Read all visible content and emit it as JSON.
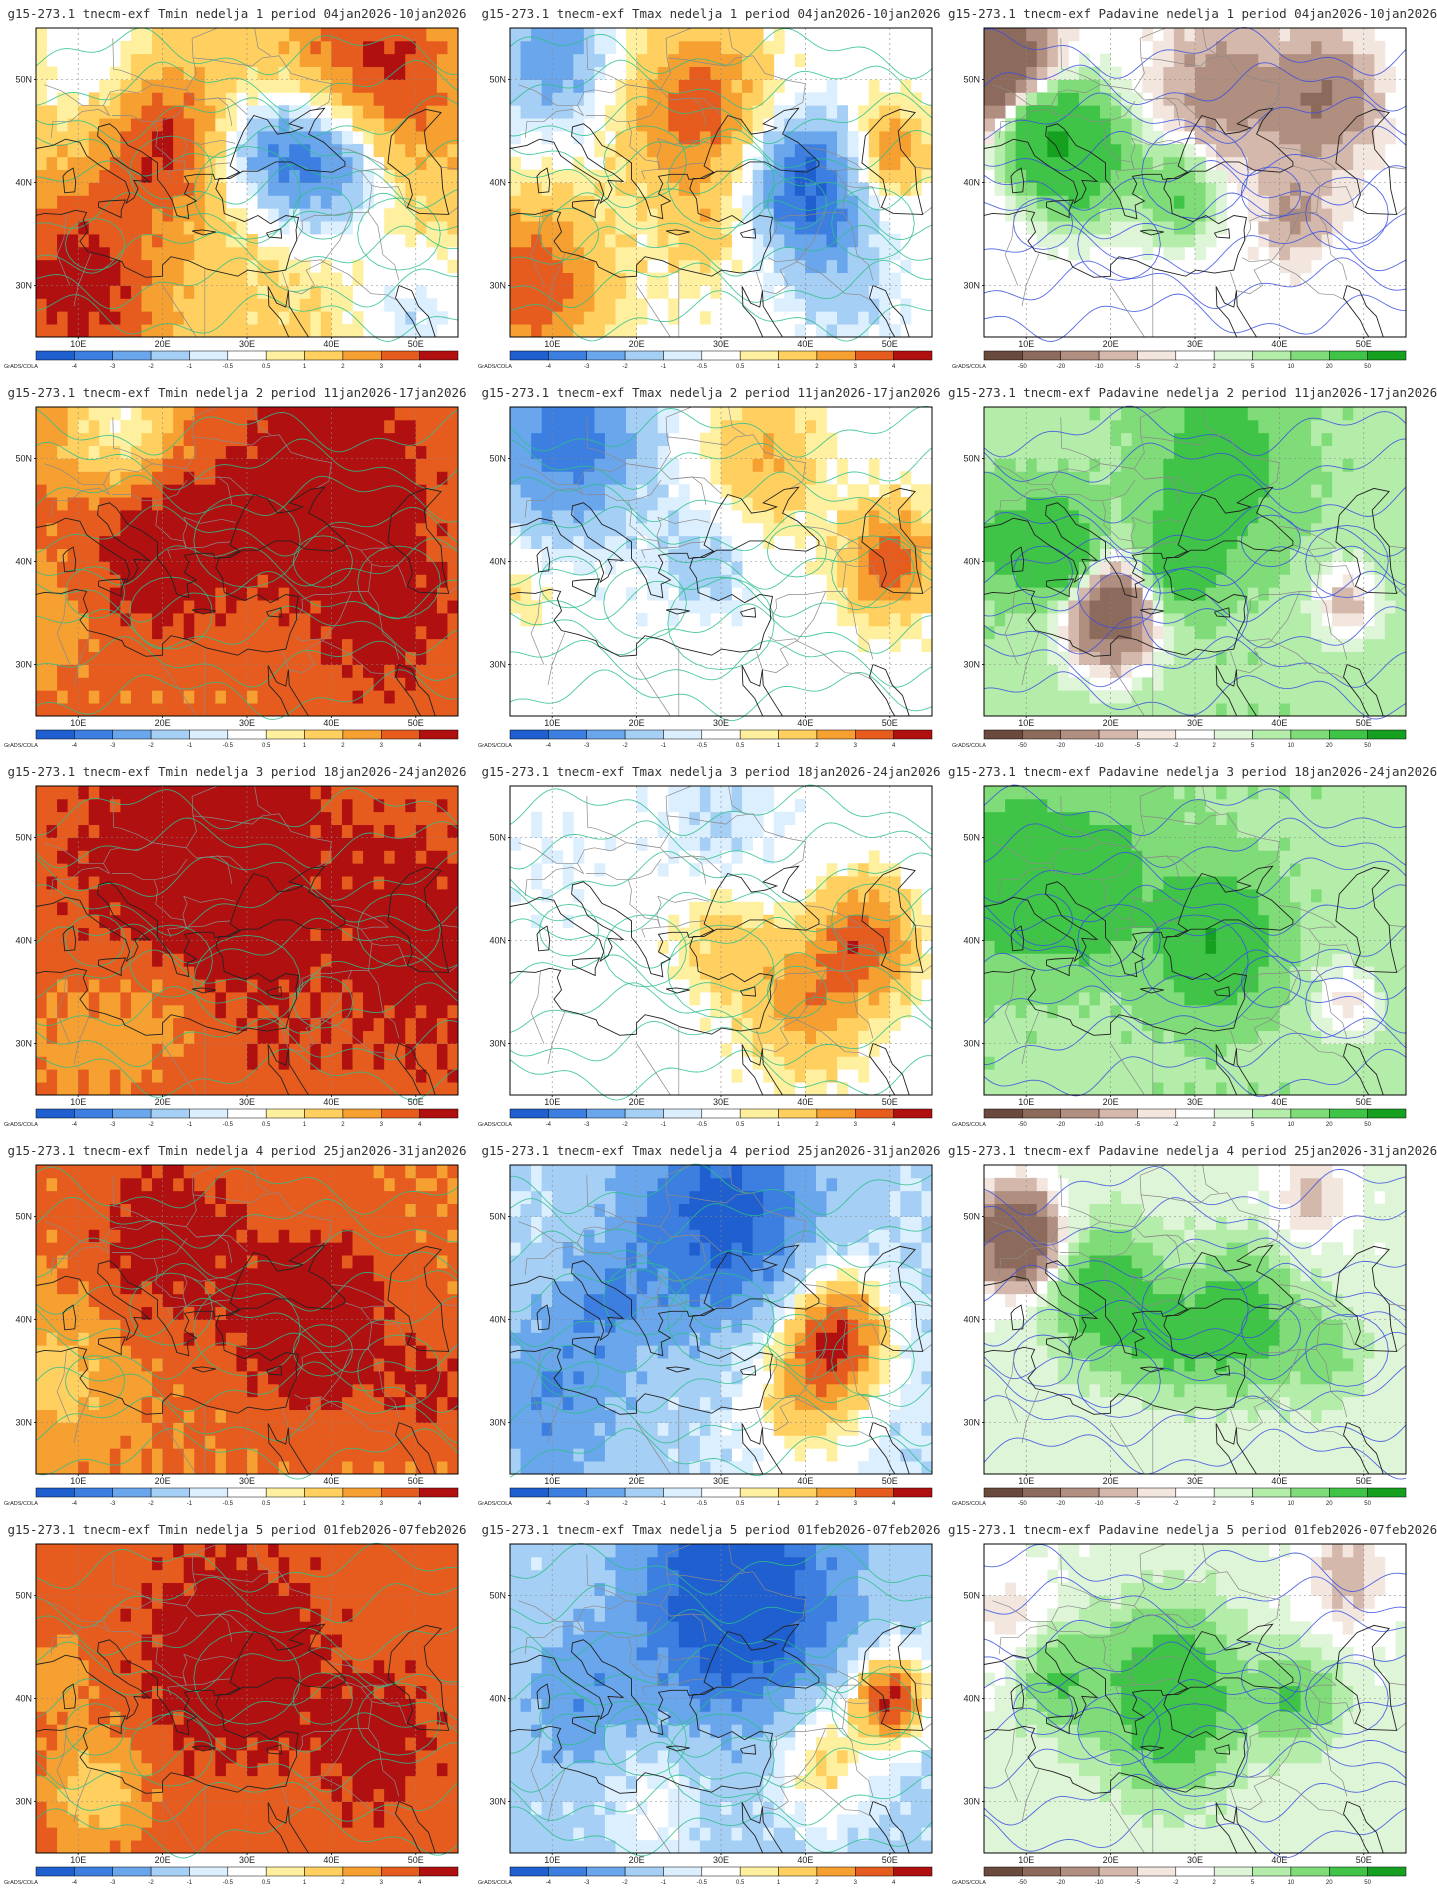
{
  "grads_label": "GrADS/COLA",
  "lat_labels": [
    "50N",
    "40N",
    "30N"
  ],
  "lon_labels": [
    "10E",
    "20E",
    "30E",
    "40E",
    "50E"
  ],
  "temp_colorbar": {
    "labels": [
      "-4",
      "-3",
      "-2",
      "-1",
      "-0.5",
      "0.5",
      "1",
      "2",
      "3",
      "4"
    ],
    "colors": [
      "#1f5fcf",
      "#3c7fe0",
      "#6aa6ec",
      "#a6cff5",
      "#dcefff",
      "#ffffff",
      "#fff0a0",
      "#ffd060",
      "#f5a030",
      "#e65c1e",
      "#b01010"
    ]
  },
  "precip_colorbar": {
    "labels": [
      "-50",
      "-20",
      "-10",
      "-5",
      "-2",
      "2",
      "5",
      "10",
      "20",
      "50"
    ],
    "colors": [
      "#6b4a3e",
      "#8c6a5c",
      "#b08e80",
      "#d4b8ac",
      "#f2e6df",
      "#ffffff",
      "#dff5d8",
      "#b4ecaa",
      "#7fdc78",
      "#3fc448",
      "#16a020"
    ]
  },
  "panels": [
    {
      "title": "g15-273.1 tnecm-exf Tmin nedelja 1 period 04jan2026-10jan2026",
      "kind": "tmin"
    },
    {
      "title": "g15-273.1 tnecm-exf Tmax nedelja 1 period 04jan2026-10jan2026",
      "kind": "tmax"
    },
    {
      "title": "g15-273.1 tnecm-exf Padavine nedelja 1 period 04jan2026-10jan2026",
      "kind": "precip"
    },
    {
      "title": "g15-273.1 tnecm-exf Tmin nedelja 2 period 11jan2026-17jan2026",
      "kind": "tmin"
    },
    {
      "title": "g15-273.1 tnecm-exf Tmax nedelja 2 period 11jan2026-17jan2026",
      "kind": "tmax"
    },
    {
      "title": "g15-273.1 tnecm-exf Padavine nedelja 2 period 11jan2026-17jan2026",
      "kind": "precip"
    },
    {
      "title": "g15-273.1 tnecm-exf Tmin nedelja 3 period 18jan2026-24jan2026",
      "kind": "tmin"
    },
    {
      "title": "g15-273.1 tnecm-exf Tmax nedelja 3 period 18jan2026-24jan2026",
      "kind": "tmax"
    },
    {
      "title": "g15-273.1 tnecm-exf Padavine nedelja 3 period 18jan2026-24jan2026",
      "kind": "precip"
    },
    {
      "title": "g15-273.1 tnecm-exf Tmin nedelja 4 period 25jan2026-31jan2026",
      "kind": "tmin"
    },
    {
      "title": "g15-273.1 tnecm-exf Tmax nedelja 4 period 25jan2026-31jan2026",
      "kind": "tmax"
    },
    {
      "title": "g15-273.1 tnecm-exf Padavine nedelja 4 period 25jan2026-31jan2026",
      "kind": "precip"
    },
    {
      "title": "g15-273.1 tnecm-exf Tmin nedelja 5 period 01feb2026-07feb2026",
      "kind": "tmin"
    },
    {
      "title": "g15-273.1 tnecm-exf Tmax nedelja 5 period 01feb2026-07feb2026",
      "kind": "tmax"
    },
    {
      "title": "g15-273.1 tnecm-exf Padavine nedelja 5 period 01feb2026-07feb2026",
      "kind": "precip"
    }
  ]
}
